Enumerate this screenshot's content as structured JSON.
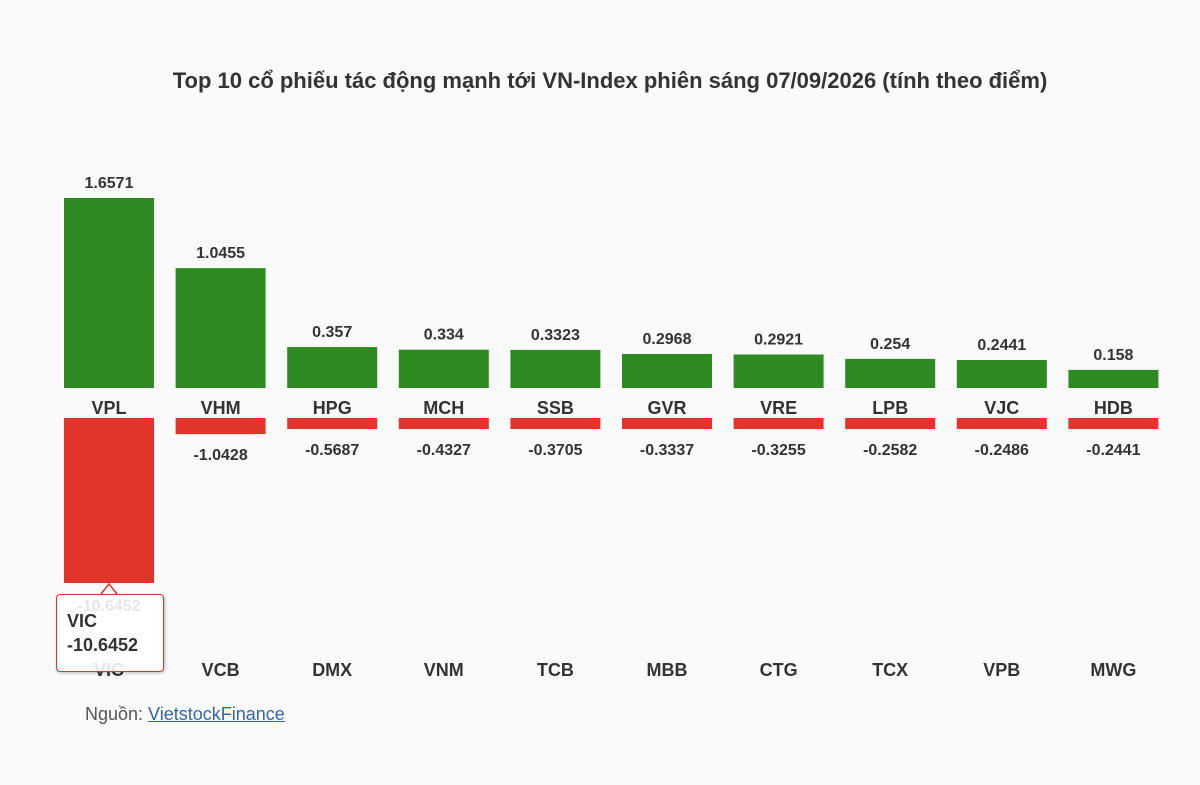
{
  "title": "Top 10 cổ phiếu tác động mạnh tới VN-Index phiên sáng 07/09/2026 (tính theo điểm)",
  "source": {
    "prefix": "Nguồn: ",
    "link_text": "VietstockFinance"
  },
  "tooltip": {
    "ticker": "VIC",
    "value": "-10.6452"
  },
  "colors": {
    "positive": "#2e8b22",
    "negative": "#e2342a",
    "text": "#333333",
    "background": "#fafafa"
  },
  "chart_data": {
    "type": "bar",
    "title": "Top 10 cổ phiếu tác động mạnh tới VN-Index phiên sáng 07/09/2026 (tính theo điểm)",
    "xlabel": "",
    "ylabel": "",
    "grid": false,
    "legend": "none",
    "series": [
      {
        "categories": [
          "VPL",
          "VHM",
          "HPG",
          "MCH",
          "SSB",
          "GVR",
          "VRE",
          "LPB",
          "VJC",
          "HDB"
        ],
        "values": [
          1.6571,
          1.0455,
          0.357,
          0.334,
          0.3323,
          0.2968,
          0.2921,
          0.254,
          0.2441,
          0.158
        ],
        "labels": [
          "1.6571",
          "1.0455",
          "0.357",
          "0.334",
          "0.3323",
          "0.2968",
          "0.2921",
          "0.254",
          "0.2441",
          "0.158"
        ]
      },
      {
        "categories": [
          "VIC",
          "VCB",
          "DMX",
          "VNM",
          "TCB",
          "MBB",
          "CTG",
          "TCX",
          "VPB",
          "MWG"
        ],
        "values": [
          -10.6452,
          -1.0428,
          -0.5687,
          -0.4327,
          -0.3705,
          -0.3337,
          -0.3255,
          -0.2582,
          -0.2486,
          -0.2441
        ],
        "labels": [
          "-10.6452",
          "-1.0428",
          "-0.5687",
          "-0.4327",
          "-0.3705",
          "-0.3337",
          "-0.3255",
          "-0.2582",
          "-0.2486",
          "-0.2441"
        ]
      }
    ]
  }
}
